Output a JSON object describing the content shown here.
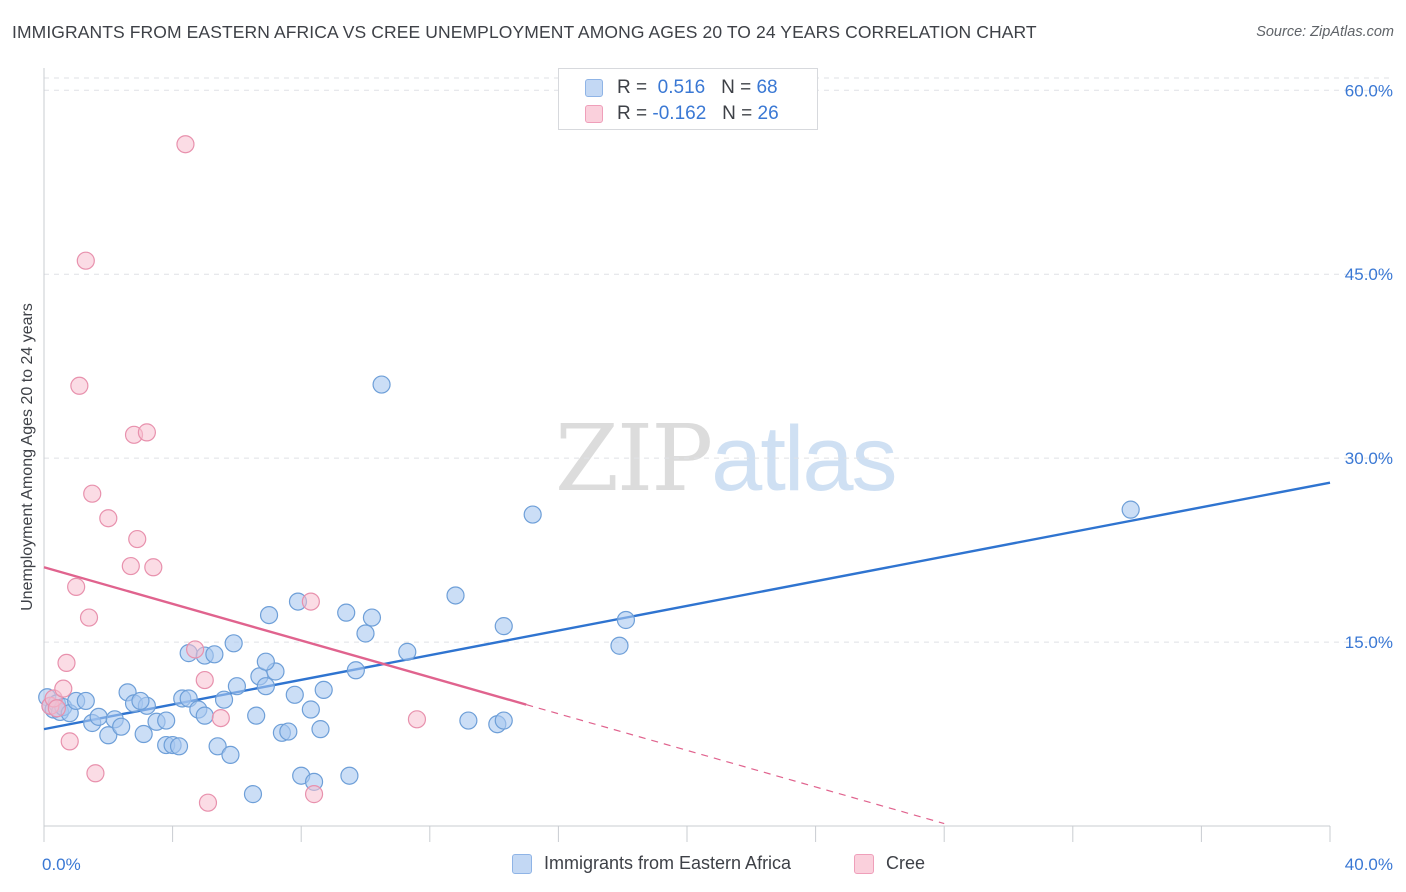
{
  "title": "IMMIGRANTS FROM EASTERN AFRICA VS CREE UNEMPLOYMENT AMONG AGES 20 TO 24 YEARS CORRELATION CHART",
  "source": "Source: ZipAtlas.com",
  "watermark": {
    "zip": "ZIP",
    "atlas": "atlas"
  },
  "legend_top": [
    {
      "r_label": "R =",
      "r_value": "0.516",
      "n_label": "N =",
      "n_value": "68"
    },
    {
      "r_label": "R =",
      "r_value": "-0.162",
      "n_label": "N =",
      "n_value": "26"
    }
  ],
  "legend_bottom": [
    {
      "label": "Immigrants from Eastern Africa"
    },
    {
      "label": "Cree"
    }
  ],
  "colors": {
    "blue_fill": "#a9c8f0",
    "blue_stroke": "#6e9fd8",
    "blue_line": "#2f74d0",
    "pink_fill": "#f7bfd0",
    "pink_stroke": "#e891ad",
    "pink_line": "#e0638e",
    "tick_label": "#3a78d4",
    "grid": "#dfe1e5"
  },
  "chart_data": {
    "type": "scatter",
    "xlabel": "",
    "ylabel": "Unemployment Among Ages 20 to 24 years",
    "xlim": [
      0,
      40
    ],
    "ylim": [
      0,
      61
    ],
    "x_tick_labels": [
      "0.0%",
      "40.0%"
    ],
    "y_ticks": [
      15,
      30,
      45,
      60
    ],
    "y_tick_labels": [
      "15.0%",
      "30.0%",
      "45.0%",
      "60.0%"
    ],
    "grid": true,
    "legend_position": "top-center",
    "series": [
      {
        "name": "Immigrants from Eastern Africa",
        "color": "#a9c8f0",
        "points": [
          [
            0.1,
            10.5
          ],
          [
            0.2,
            9.8
          ],
          [
            0.3,
            9.5
          ],
          [
            0.4,
            10.0
          ],
          [
            0.5,
            9.3
          ],
          [
            0.6,
            9.7
          ],
          [
            0.8,
            9.2
          ],
          [
            1.0,
            10.2
          ],
          [
            1.3,
            10.2
          ],
          [
            1.5,
            8.4
          ],
          [
            1.7,
            8.9
          ],
          [
            2.0,
            7.4
          ],
          [
            2.2,
            8.7
          ],
          [
            2.4,
            8.1
          ],
          [
            2.6,
            10.9
          ],
          [
            2.8,
            10.0
          ],
          [
            3.2,
            9.8
          ],
          [
            3.1,
            7.5
          ],
          [
            3.5,
            8.5
          ],
          [
            3.8,
            8.6
          ],
          [
            3.8,
            6.6
          ],
          [
            4.0,
            6.6
          ],
          [
            4.2,
            6.5
          ],
          [
            4.3,
            10.4
          ],
          [
            4.5,
            10.4
          ],
          [
            4.5,
            14.1
          ],
          [
            4.8,
            9.5
          ],
          [
            5.0,
            9.0
          ],
          [
            5.0,
            13.9
          ],
          [
            5.3,
            14.0
          ],
          [
            5.4,
            6.5
          ],
          [
            5.6,
            10.3
          ],
          [
            5.8,
            5.8
          ],
          [
            5.9,
            14.9
          ],
          [
            6.0,
            11.4
          ],
          [
            6.5,
            2.6
          ],
          [
            6.6,
            9.0
          ],
          [
            6.7,
            12.2
          ],
          [
            6.9,
            11.4
          ],
          [
            7.0,
            17.2
          ],
          [
            7.2,
            12.6
          ],
          [
            7.4,
            7.6
          ],
          [
            7.6,
            7.7
          ],
          [
            7.8,
            10.7
          ],
          [
            7.9,
            18.3
          ],
          [
            8.0,
            4.1
          ],
          [
            8.3,
            9.5
          ],
          [
            8.4,
            3.6
          ],
          [
            8.6,
            7.9
          ],
          [
            8.7,
            11.1
          ],
          [
            9.4,
            17.4
          ],
          [
            9.5,
            4.1
          ],
          [
            9.7,
            12.7
          ],
          [
            10.0,
            15.7
          ],
          [
            10.2,
            17.0
          ],
          [
            10.5,
            36.0
          ],
          [
            11.3,
            14.2
          ],
          [
            12.8,
            18.8
          ],
          [
            13.2,
            8.6
          ],
          [
            14.1,
            8.3
          ],
          [
            14.3,
            8.6
          ],
          [
            14.3,
            16.3
          ],
          [
            15.2,
            25.4
          ],
          [
            17.9,
            14.7
          ],
          [
            18.1,
            16.8
          ],
          [
            33.8,
            25.8
          ],
          [
            6.9,
            13.4
          ],
          [
            3.0,
            10.2
          ]
        ]
      },
      {
        "name": "Cree",
        "color": "#f7bfd0",
        "points": [
          [
            0.2,
            9.8
          ],
          [
            0.3,
            10.4
          ],
          [
            0.4,
            9.6
          ],
          [
            0.6,
            11.2
          ],
          [
            0.7,
            13.3
          ],
          [
            0.8,
            6.9
          ],
          [
            1.0,
            19.5
          ],
          [
            1.1,
            35.9
          ],
          [
            1.3,
            46.1
          ],
          [
            1.4,
            17.0
          ],
          [
            1.5,
            27.1
          ],
          [
            1.6,
            4.3
          ],
          [
            2.0,
            25.1
          ],
          [
            2.7,
            21.2
          ],
          [
            2.8,
            31.9
          ],
          [
            2.9,
            23.4
          ],
          [
            3.2,
            32.1
          ],
          [
            3.4,
            21.1
          ],
          [
            4.4,
            55.6
          ],
          [
            4.7,
            14.4
          ],
          [
            5.0,
            11.9
          ],
          [
            5.1,
            1.9
          ],
          [
            5.5,
            8.8
          ],
          [
            8.3,
            18.3
          ],
          [
            8.4,
            2.6
          ],
          [
            11.6,
            8.7
          ]
        ]
      }
    ],
    "trend_lines": [
      {
        "series": "Immigrants from Eastern Africa",
        "x": [
          0,
          40
        ],
        "y": [
          7.9,
          28.0
        ],
        "style": "solid"
      },
      {
        "series": "Cree",
        "x": [
          0,
          15.0
        ],
        "y": [
          21.1,
          9.9
        ],
        "style": "solid"
      },
      {
        "series": "Cree",
        "x": [
          15.0,
          28.0
        ],
        "y": [
          9.9,
          0.2
        ],
        "style": "dashed"
      }
    ]
  }
}
